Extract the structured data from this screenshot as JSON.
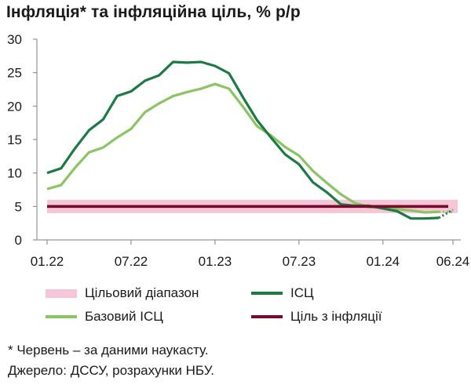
{
  "title": "Інфляція* та інфляційна ціль, % р/р",
  "colors": {
    "target_band": "#f4c6d6",
    "cpi": "#1e7a45",
    "core_cpi": "#8cc363",
    "target": "#7a0a2c",
    "axis": "#7f7f7f"
  },
  "chart_data": {
    "type": "line",
    "title": "Інфляція* та інфляційна ціль, % р/р",
    "x_tick_labels": [
      "01.22",
      "07.22",
      "01.23",
      "07.23",
      "01.24",
      "06.24"
    ],
    "y_ticks": [
      0,
      5,
      10,
      15,
      20,
      25,
      30
    ],
    "ylim": [
      0,
      30
    ],
    "grid": false,
    "legend_position": "bottom",
    "x": [
      "2022-01",
      "2022-02",
      "2022-03",
      "2022-04",
      "2022-05",
      "2022-06",
      "2022-07",
      "2022-08",
      "2022-09",
      "2022-10",
      "2022-11",
      "2022-12",
      "2023-01",
      "2023-02",
      "2023-03",
      "2023-04",
      "2023-05",
      "2023-06",
      "2023-07",
      "2023-08",
      "2023-09",
      "2023-10",
      "2023-11",
      "2023-12",
      "2024-01",
      "2024-02",
      "2024-03",
      "2024-04",
      "2024-05",
      "2024-06"
    ],
    "series": [
      {
        "name": "ІСЦ",
        "color_key": "cpi",
        "values": [
          10.0,
          10.7,
          13.7,
          16.4,
          18.0,
          21.5,
          22.2,
          23.8,
          24.6,
          26.6,
          26.5,
          26.6,
          26.0,
          24.9,
          21.3,
          17.9,
          15.3,
          12.8,
          11.3,
          8.6,
          7.1,
          5.3,
          5.1,
          5.1,
          4.7,
          4.3,
          3.2,
          3.2,
          3.3,
          4.5
        ],
        "nowcast_from_index": 28
      },
      {
        "name": "Базовий ІСЦ",
        "color_key": "core_cpi",
        "values": [
          7.6,
          8.2,
          10.8,
          13.1,
          13.8,
          15.3,
          16.6,
          19.1,
          20.4,
          21.5,
          22.1,
          22.6,
          23.3,
          22.6,
          19.9,
          17.0,
          15.6,
          13.9,
          12.6,
          10.3,
          8.5,
          6.8,
          5.5,
          4.9,
          4.8,
          4.6,
          4.4,
          4.1,
          4.2,
          4.2
        ],
        "nowcast_from_index": 28
      }
    ],
    "target": {
      "name": "Ціль з інфляції",
      "value": 5,
      "color_key": "target"
    },
    "target_range": {
      "name": "Цільовий діапазон",
      "low": 4,
      "high": 6,
      "color_key": "target_band"
    }
  },
  "legend": {
    "band_label": "Цільовий діапазон",
    "cpi_label": "ІСЦ",
    "core_label": "Базовий ІСЦ",
    "target_label": "Ціль з інфляції"
  },
  "footnotes": {
    "note": "* Червень – за даними наукасту.",
    "source": "Джерело: ДССУ, розрахунки НБУ."
  }
}
